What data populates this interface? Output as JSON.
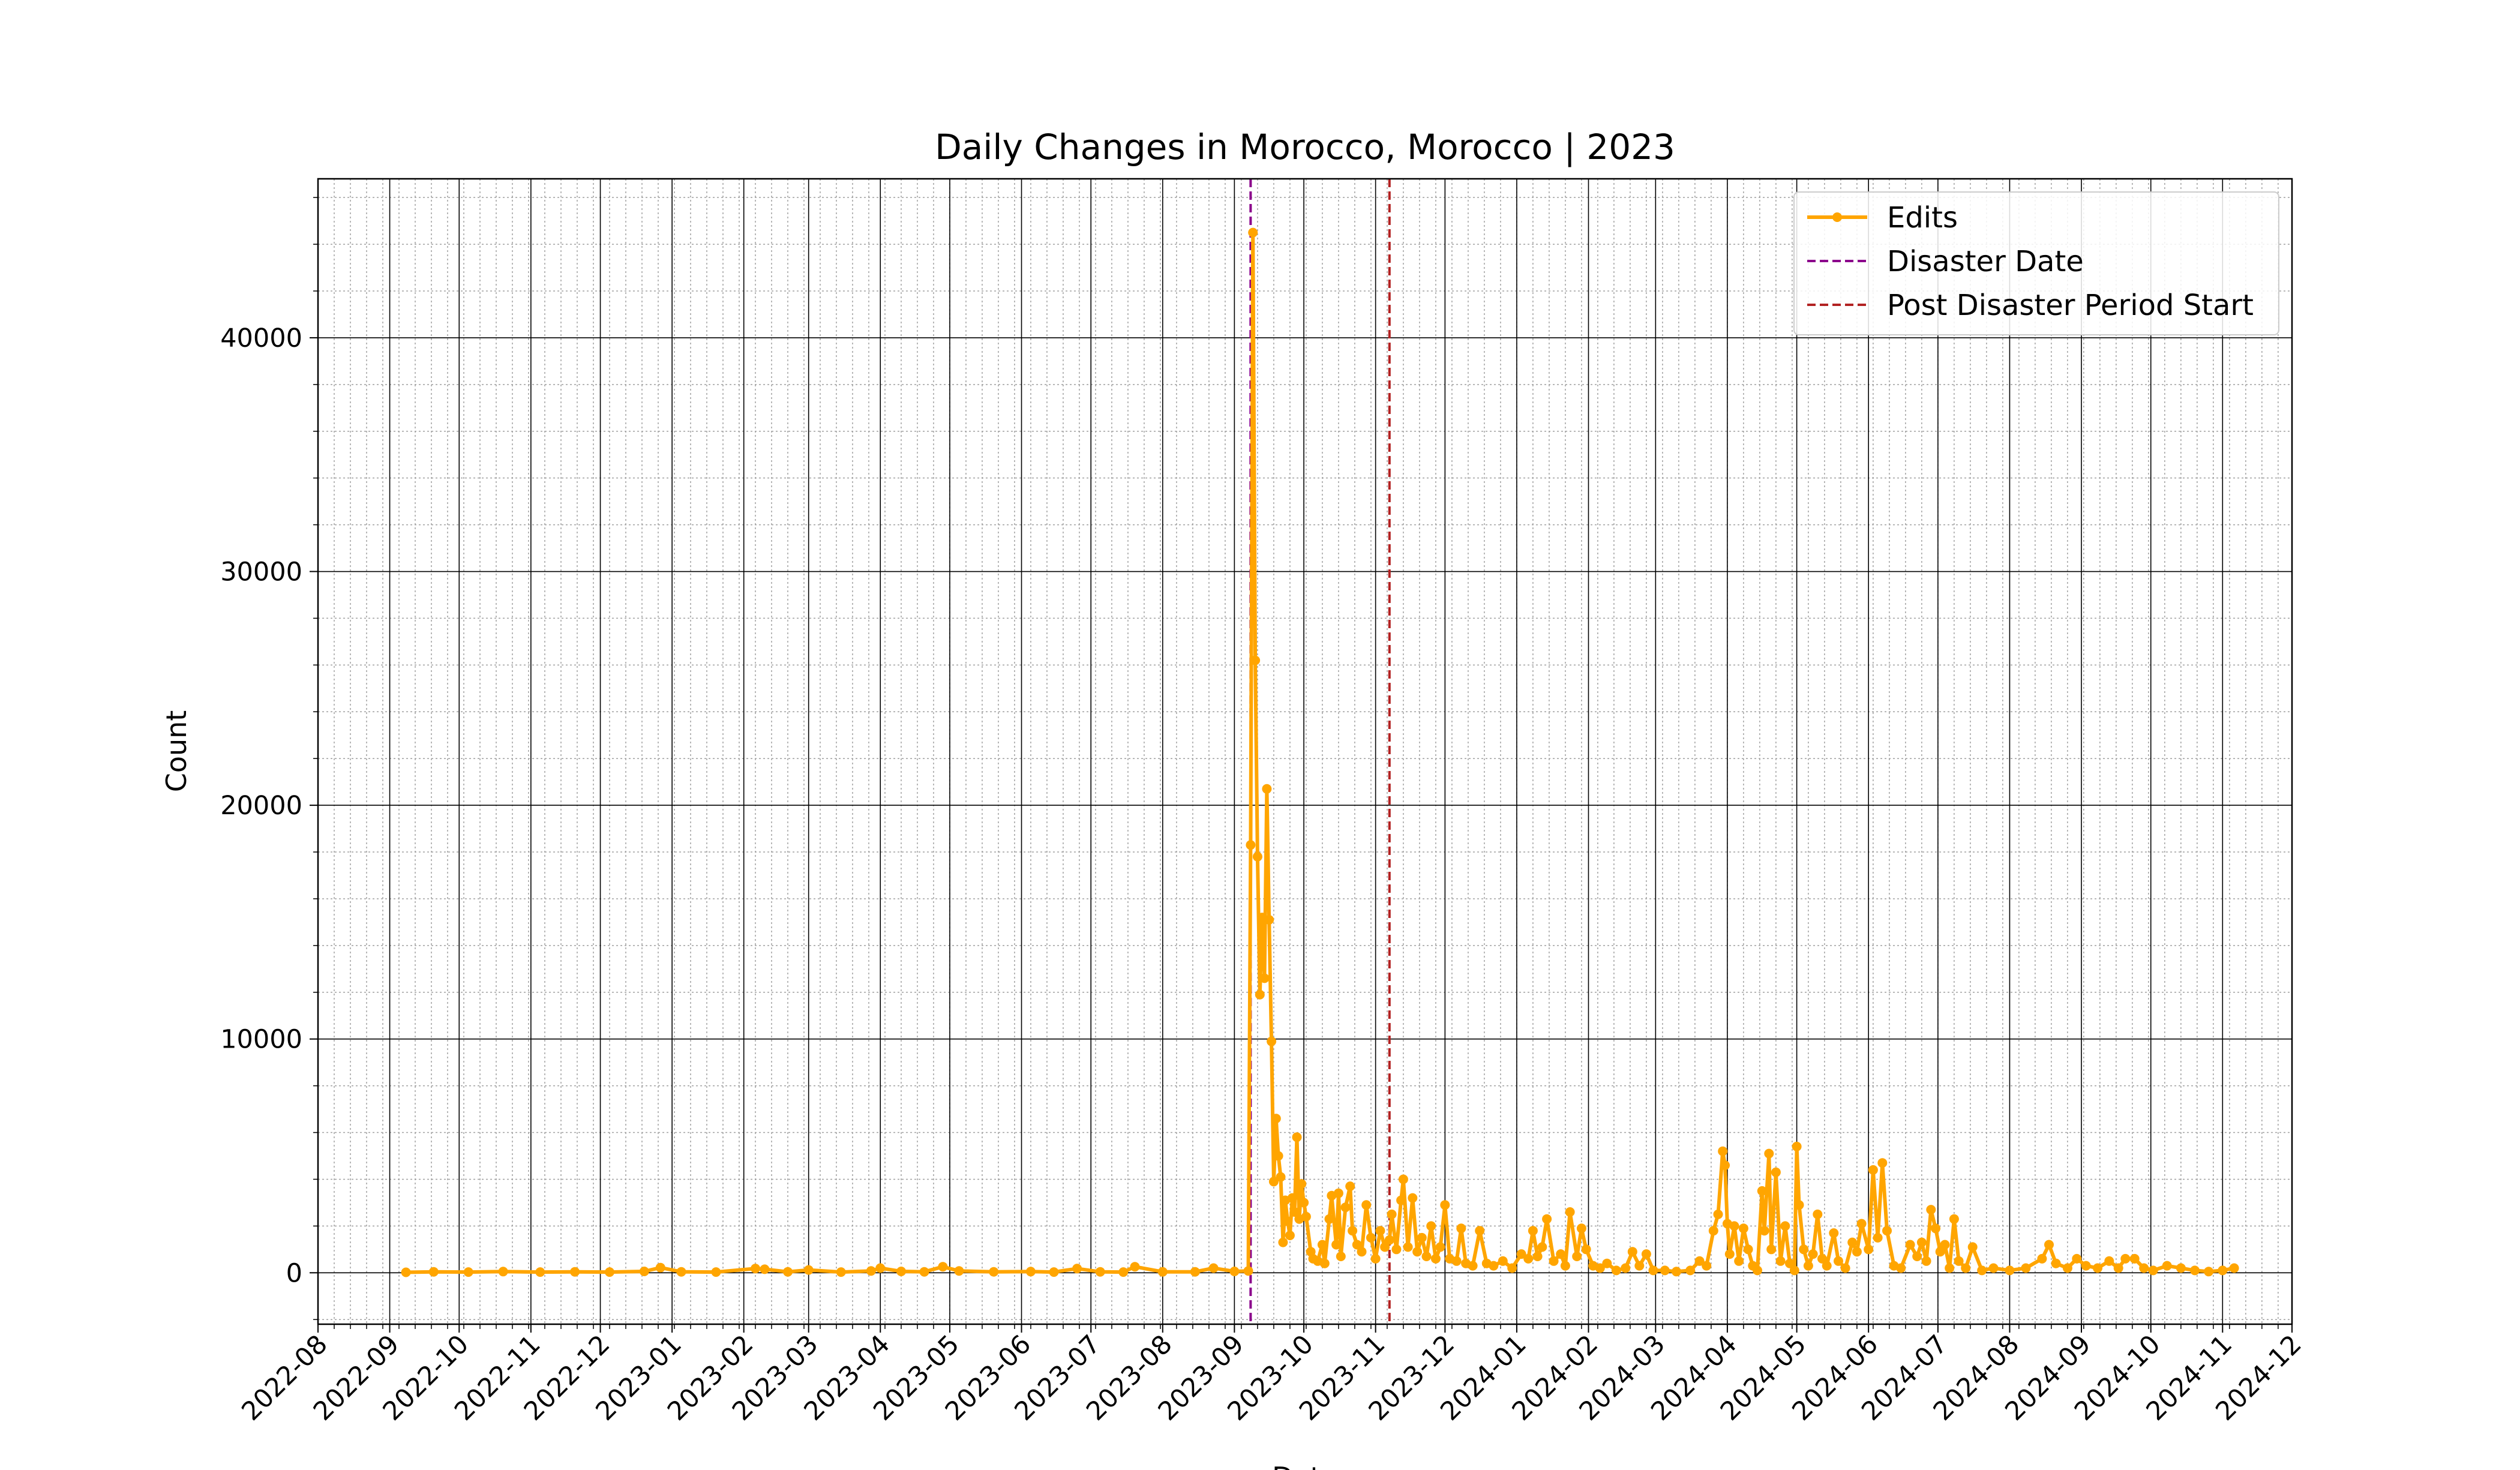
{
  "chart_data": {
    "type": "line",
    "title": "Daily Changes in Morocco, Morocco | 2023",
    "xlabel": "Date",
    "ylabel": "Count",
    "x_axis": {
      "type": "date",
      "range": [
        "2022-08-01",
        "2024-12-01"
      ],
      "tick_labels": [
        "2022-08",
        "2022-09",
        "2022-10",
        "2022-11",
        "2022-12",
        "2023-01",
        "2023-02",
        "2023-03",
        "2023-04",
        "2023-05",
        "2023-06",
        "2023-07",
        "2023-08",
        "2023-09",
        "2023-10",
        "2023-11",
        "2023-12",
        "2024-01",
        "2024-02",
        "2024-03",
        "2024-04",
        "2024-05",
        "2024-06",
        "2024-07",
        "2024-08",
        "2024-09",
        "2024-10",
        "2024-11",
        "2024-12"
      ]
    },
    "y_axis": {
      "range": [
        -2200,
        46800
      ],
      "tick_values": [
        0,
        10000,
        20000,
        30000,
        40000
      ],
      "tick_labels": [
        "0",
        "10000",
        "20000",
        "30000",
        "40000"
      ]
    },
    "grid": {
      "major": true,
      "minor": true
    },
    "legend": {
      "placement": "top-right",
      "entries": [
        {
          "label": "Edits",
          "color": "#FFA500",
          "style": "solid-line-with-dot"
        },
        {
          "label": "Disaster Date",
          "color": "#8B008B",
          "style": "dashed"
        },
        {
          "label": "Post Disaster Period Start",
          "color": "#B22222",
          "style": "dashed"
        }
      ]
    },
    "reference_lines": [
      {
        "name": "Disaster Date",
        "date": "2023-09-08",
        "color": "#8B008B"
      },
      {
        "name": "Post Disaster Period Start",
        "date": "2023-11-07",
        "color": "#B22222"
      }
    ],
    "series": [
      {
        "name": "Edits",
        "color": "#FFA500",
        "points": [
          [
            "2022-09-08",
            20
          ],
          [
            "2022-09-20",
            40
          ],
          [
            "2022-10-05",
            30
          ],
          [
            "2022-10-20",
            50
          ],
          [
            "2022-11-05",
            30
          ],
          [
            "2022-11-20",
            40
          ],
          [
            "2022-12-05",
            30
          ],
          [
            "2022-12-20",
            60
          ],
          [
            "2022-12-27",
            220
          ],
          [
            "2023-01-05",
            40
          ],
          [
            "2023-01-20",
            30
          ],
          [
            "2023-02-06",
            180
          ],
          [
            "2023-02-10",
            150
          ],
          [
            "2023-02-20",
            40
          ],
          [
            "2023-03-01",
            120
          ],
          [
            "2023-03-15",
            30
          ],
          [
            "2023-03-28",
            80
          ],
          [
            "2023-04-01",
            200
          ],
          [
            "2023-04-10",
            60
          ],
          [
            "2023-04-20",
            40
          ],
          [
            "2023-04-28",
            260
          ],
          [
            "2023-05-05",
            80
          ],
          [
            "2023-05-20",
            40
          ],
          [
            "2023-06-05",
            50
          ],
          [
            "2023-06-15",
            30
          ],
          [
            "2023-06-25",
            180
          ],
          [
            "2023-07-05",
            40
          ],
          [
            "2023-07-15",
            30
          ],
          [
            "2023-07-20",
            260
          ],
          [
            "2023-08-01",
            40
          ],
          [
            "2023-08-15",
            40
          ],
          [
            "2023-08-23",
            200
          ],
          [
            "2023-09-01",
            60
          ],
          [
            "2023-09-07",
            80
          ],
          [
            "2023-09-08",
            18300
          ],
          [
            "2023-09-09",
            44500
          ],
          [
            "2023-09-10",
            26200
          ],
          [
            "2023-09-11",
            17800
          ],
          [
            "2023-09-12",
            11900
          ],
          [
            "2023-09-13",
            15200
          ],
          [
            "2023-09-14",
            12600
          ],
          [
            "2023-09-15",
            20700
          ],
          [
            "2023-09-16",
            15100
          ],
          [
            "2023-09-17",
            9900
          ],
          [
            "2023-09-18",
            3900
          ],
          [
            "2023-09-19",
            6600
          ],
          [
            "2023-09-20",
            5000
          ],
          [
            "2023-09-21",
            4100
          ],
          [
            "2023-09-22",
            1300
          ],
          [
            "2023-09-23",
            3100
          ],
          [
            "2023-09-24",
            2200
          ],
          [
            "2023-09-25",
            1600
          ],
          [
            "2023-09-26",
            3200
          ],
          [
            "2023-09-27",
            2600
          ],
          [
            "2023-09-28",
            5800
          ],
          [
            "2023-09-29",
            2300
          ],
          [
            "2023-09-30",
            3800
          ],
          [
            "2023-10-01",
            3000
          ],
          [
            "2023-10-02",
            2400
          ],
          [
            "2023-10-04",
            900
          ],
          [
            "2023-10-05",
            600
          ],
          [
            "2023-10-07",
            500
          ],
          [
            "2023-10-09",
            1200
          ],
          [
            "2023-10-10",
            400
          ],
          [
            "2023-10-12",
            2300
          ],
          [
            "2023-10-13",
            3300
          ],
          [
            "2023-10-15",
            1200
          ],
          [
            "2023-10-16",
            3400
          ],
          [
            "2023-10-17",
            700
          ],
          [
            "2023-10-19",
            2800
          ],
          [
            "2023-10-21",
            3700
          ],
          [
            "2023-10-22",
            1800
          ],
          [
            "2023-10-24",
            1200
          ],
          [
            "2023-10-26",
            900
          ],
          [
            "2023-10-28",
            2900
          ],
          [
            "2023-10-30",
            1500
          ],
          [
            "2023-11-01",
            600
          ],
          [
            "2023-11-03",
            1800
          ],
          [
            "2023-11-05",
            1100
          ],
          [
            "2023-11-07",
            1400
          ],
          [
            "2023-11-08",
            2500
          ],
          [
            "2023-11-10",
            1000
          ],
          [
            "2023-11-12",
            3100
          ],
          [
            "2023-11-13",
            4000
          ],
          [
            "2023-11-15",
            1100
          ],
          [
            "2023-11-17",
            3200
          ],
          [
            "2023-11-19",
            900
          ],
          [
            "2023-11-21",
            1500
          ],
          [
            "2023-11-23",
            700
          ],
          [
            "2023-11-25",
            2000
          ],
          [
            "2023-11-27",
            600
          ],
          [
            "2023-11-29",
            1100
          ],
          [
            "2023-12-01",
            2900
          ],
          [
            "2023-12-03",
            600
          ],
          [
            "2023-12-06",
            500
          ],
          [
            "2023-12-08",
            1900
          ],
          [
            "2023-12-10",
            400
          ],
          [
            "2023-12-13",
            300
          ],
          [
            "2023-12-16",
            1800
          ],
          [
            "2023-12-19",
            400
          ],
          [
            "2023-12-22",
            300
          ],
          [
            "2023-12-26",
            500
          ],
          [
            "2023-12-30",
            200
          ],
          [
            "2024-01-03",
            800
          ],
          [
            "2024-01-06",
            600
          ],
          [
            "2024-01-08",
            1800
          ],
          [
            "2024-01-10",
            700
          ],
          [
            "2024-01-12",
            1100
          ],
          [
            "2024-01-14",
            2300
          ],
          [
            "2024-01-17",
            500
          ],
          [
            "2024-01-20",
            800
          ],
          [
            "2024-01-22",
            300
          ],
          [
            "2024-01-24",
            2600
          ],
          [
            "2024-01-27",
            700
          ],
          [
            "2024-01-29",
            1900
          ],
          [
            "2024-01-31",
            1000
          ],
          [
            "2024-02-03",
            300
          ],
          [
            "2024-02-06",
            200
          ],
          [
            "2024-02-09",
            400
          ],
          [
            "2024-02-13",
            100
          ],
          [
            "2024-02-17",
            200
          ],
          [
            "2024-02-20",
            900
          ],
          [
            "2024-02-23",
            300
          ],
          [
            "2024-02-26",
            800
          ],
          [
            "2024-02-29",
            100
          ],
          [
            "2024-03-05",
            100
          ],
          [
            "2024-03-10",
            50
          ],
          [
            "2024-03-16",
            100
          ],
          [
            "2024-03-20",
            500
          ],
          [
            "2024-03-23",
            300
          ],
          [
            "2024-03-26",
            1800
          ],
          [
            "2024-03-28",
            2500
          ],
          [
            "2024-03-30",
            5200
          ],
          [
            "2024-03-31",
            4600
          ],
          [
            "2024-04-01",
            2100
          ],
          [
            "2024-04-02",
            800
          ],
          [
            "2024-04-04",
            2000
          ],
          [
            "2024-04-06",
            500
          ],
          [
            "2024-04-08",
            1900
          ],
          [
            "2024-04-10",
            1000
          ],
          [
            "2024-04-12",
            300
          ],
          [
            "2024-04-14",
            100
          ],
          [
            "2024-04-16",
            3500
          ],
          [
            "2024-04-17",
            1800
          ],
          [
            "2024-04-19",
            5100
          ],
          [
            "2024-04-20",
            1000
          ],
          [
            "2024-04-22",
            4300
          ],
          [
            "2024-04-24",
            500
          ],
          [
            "2024-04-26",
            2000
          ],
          [
            "2024-04-28",
            400
          ],
          [
            "2024-04-30",
            100
          ],
          [
            "2024-05-01",
            5400
          ],
          [
            "2024-05-02",
            2900
          ],
          [
            "2024-05-04",
            1000
          ],
          [
            "2024-05-06",
            300
          ],
          [
            "2024-05-08",
            800
          ],
          [
            "2024-05-10",
            2500
          ],
          [
            "2024-05-12",
            600
          ],
          [
            "2024-05-14",
            300
          ],
          [
            "2024-05-17",
            1700
          ],
          [
            "2024-05-19",
            500
          ],
          [
            "2024-05-22",
            200
          ],
          [
            "2024-05-25",
            1300
          ],
          [
            "2024-05-27",
            900
          ],
          [
            "2024-05-29",
            2100
          ],
          [
            "2024-06-01",
            1000
          ],
          [
            "2024-06-03",
            4400
          ],
          [
            "2024-06-05",
            1500
          ],
          [
            "2024-06-07",
            4700
          ],
          [
            "2024-06-09",
            1800
          ],
          [
            "2024-06-12",
            300
          ],
          [
            "2024-06-15",
            200
          ],
          [
            "2024-06-19",
            1200
          ],
          [
            "2024-06-22",
            700
          ],
          [
            "2024-06-24",
            1300
          ],
          [
            "2024-06-26",
            500
          ],
          [
            "2024-06-28",
            2700
          ],
          [
            "2024-06-30",
            1900
          ],
          [
            "2024-07-02",
            900
          ],
          [
            "2024-07-04",
            1200
          ],
          [
            "2024-07-06",
            200
          ],
          [
            "2024-07-08",
            2300
          ],
          [
            "2024-07-10",
            500
          ],
          [
            "2024-07-13",
            200
          ],
          [
            "2024-07-16",
            1100
          ],
          [
            "2024-07-20",
            100
          ],
          [
            "2024-07-25",
            200
          ],
          [
            "2024-08-01",
            100
          ],
          [
            "2024-08-08",
            200
          ],
          [
            "2024-08-15",
            600
          ],
          [
            "2024-08-18",
            1200
          ],
          [
            "2024-08-21",
            400
          ],
          [
            "2024-08-26",
            200
          ],
          [
            "2024-08-30",
            600
          ],
          [
            "2024-09-03",
            300
          ],
          [
            "2024-09-08",
            200
          ],
          [
            "2024-09-13",
            500
          ],
          [
            "2024-09-17",
            200
          ],
          [
            "2024-09-20",
            600
          ],
          [
            "2024-09-24",
            600
          ],
          [
            "2024-09-28",
            200
          ],
          [
            "2024-10-02",
            100
          ],
          [
            "2024-10-08",
            300
          ],
          [
            "2024-10-14",
            200
          ],
          [
            "2024-10-20",
            100
          ],
          [
            "2024-10-26",
            50
          ],
          [
            "2024-11-01",
            100
          ],
          [
            "2024-11-06",
            200
          ]
        ]
      }
    ]
  }
}
